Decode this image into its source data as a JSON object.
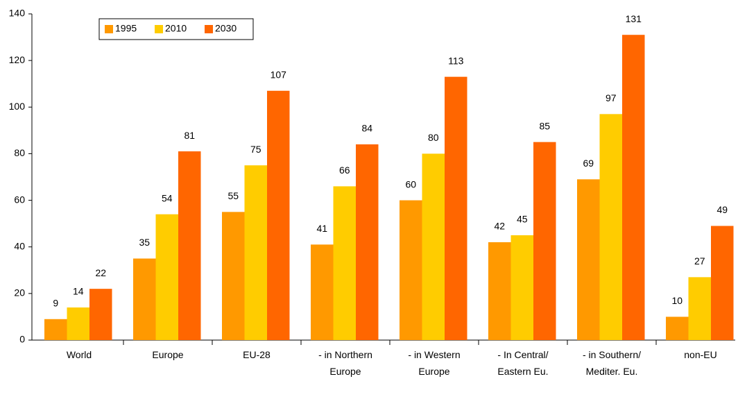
{
  "chart_data": {
    "type": "bar",
    "categories": [
      [
        "World"
      ],
      [
        "Europe"
      ],
      [
        "EU-28"
      ],
      [
        "- in Northern",
        "Europe"
      ],
      [
        "- in Western",
        "Europe"
      ],
      [
        "- In Central/",
        "Eastern Eu."
      ],
      [
        "- in Southern/",
        "Mediter. Eu."
      ],
      [
        "non-EU"
      ]
    ],
    "series": [
      {
        "name": "1995",
        "color": "#ff9900",
        "values": [
          9,
          35,
          55,
          41,
          60,
          42,
          69,
          10
        ]
      },
      {
        "name": "2010",
        "color": "#ffcc00",
        "values": [
          14,
          54,
          75,
          66,
          80,
          45,
          97,
          27
        ]
      },
      {
        "name": "2030",
        "color": "#ff6600",
        "values": [
          22,
          81,
          107,
          84,
          113,
          85,
          131,
          49
        ]
      }
    ],
    "ylim": [
      0,
      140
    ],
    "yticks": [
      0,
      20,
      40,
      60,
      80,
      100,
      120,
      140
    ],
    "grid": false,
    "legend": "top-left"
  }
}
